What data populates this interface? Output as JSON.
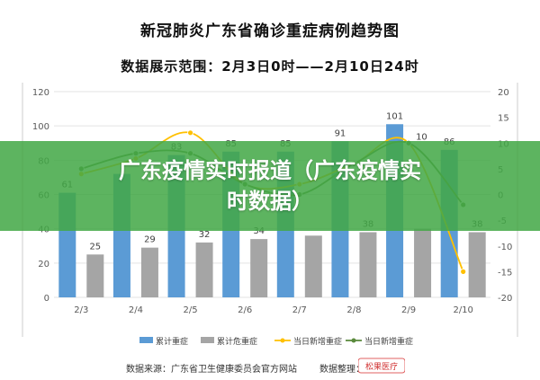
{
  "header": {
    "title": "新冠肺炎广东省确诊重症病例趋势图",
    "range": "数据展示范围：2月3日0时——2月10日24时"
  },
  "banner": {
    "line1": "广东疫情实时报道（广东疫情实",
    "line2": "时数据）"
  },
  "footer": {
    "source": "数据来源：广东省卫生健康委员会官方网站",
    "organizer": "数据整理：",
    "logo_text": "松果医疗"
  },
  "colors": {
    "cumulative_severe": "#5b9bd5",
    "cumulative_critical": "#a5a5a5",
    "new_severe_daily": "#ffc000",
    "severe_daily": "#5a8a3c",
    "banner": "#42a846"
  },
  "chart_data": {
    "type": "bar",
    "categories": [
      "2/3",
      "2/4",
      "2/5",
      "2/6",
      "2/7",
      "2/8",
      "2/9",
      "2/10"
    ],
    "series": [
      {
        "name": "累计重症",
        "type": "bar",
        "axis": "left",
        "values": [
          61,
          72,
          83,
          85,
          85,
          91,
          101,
          86
        ]
      },
      {
        "name": "累计危重症",
        "type": "bar",
        "axis": "left",
        "values": [
          25,
          29,
          32,
          34,
          36,
          38,
          40,
          38
        ]
      },
      {
        "name": "当日新增重症",
        "type": "line",
        "axis": "right",
        "values": [
          4,
          7,
          12,
          2,
          2,
          6,
          10,
          -15
        ]
      },
      {
        "name": "当日新增重症",
        "type": "line",
        "axis": "right",
        "values": [
          5,
          8,
          8,
          2,
          0,
          6,
          10,
          -2
        ]
      }
    ],
    "visible_labels": {
      "累计重症": [
        "61",
        "",
        "83",
        "85",
        "85",
        "91",
        "101",
        "86"
      ],
      "累计危重症": [
        "25",
        "29",
        "32",
        "34",
        "",
        "38",
        "",
        "38"
      ],
      "当日新增重症": [
        "",
        "",
        "",
        "",
        "",
        "",
        "10",
        ""
      ]
    },
    "left_axis": {
      "ylim": [
        0,
        120
      ],
      "ticks": [
        "0",
        "20",
        "40",
        "60",
        "80",
        "100",
        "120"
      ]
    },
    "right_axis": {
      "ylim": [
        -20,
        20
      ],
      "ticks": [
        "-20",
        "-15",
        "-10",
        "-5",
        "0",
        "5",
        "10",
        "15",
        "20"
      ]
    },
    "legend": [
      "累计重症",
      "累计危重症",
      "当日新增重症",
      "当日新增重症"
    ],
    "legend_position": "bottom",
    "grid": true
  }
}
